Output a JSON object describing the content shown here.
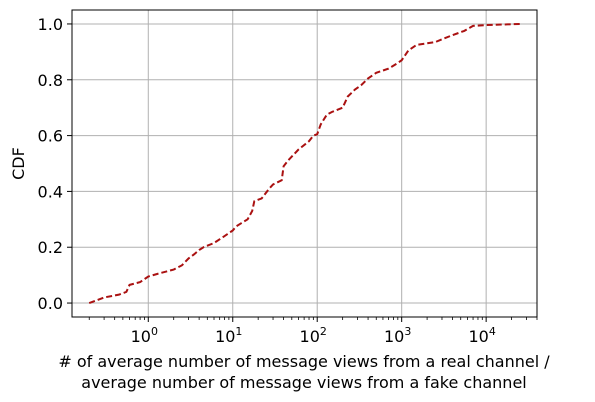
{
  "chart_data": {
    "type": "line",
    "xscale": "log",
    "xlim": [
      0.125,
      40000
    ],
    "ylim": [
      -0.05,
      1.05
    ],
    "grid": true,
    "xlabel_lines": [
      "# of average number of message views from a real channel /",
      "average number of message views from a fake channel"
    ],
    "ylabel": "CDF",
    "x_ticks": [
      {
        "value": 1,
        "base": "10",
        "exp": "0"
      },
      {
        "value": 10,
        "base": "10",
        "exp": "1"
      },
      {
        "value": 100,
        "base": "10",
        "exp": "2"
      },
      {
        "value": 1000,
        "base": "10",
        "exp": "3"
      },
      {
        "value": 10000,
        "base": "10",
        "exp": "4"
      }
    ],
    "y_ticks": [
      "0.0",
      "0.2",
      "0.4",
      "0.6",
      "0.8",
      "1.0"
    ],
    "y_tick_values": [
      0.0,
      0.2,
      0.4,
      0.6,
      0.8,
      1.0
    ],
    "series": [
      {
        "color": "#aa1111",
        "linestyle": "dashed",
        "x": [
          0.2,
          0.3,
          0.45,
          0.55,
          0.6,
          0.8,
          1.0,
          1.3,
          2.0,
          2.5,
          3.0,
          3.5,
          4.0,
          4.5,
          6.0,
          8.0,
          10.0,
          11.0,
          15.0,
          17.0,
          18.0,
          22.0,
          27.0,
          30.0,
          38.0,
          40.0,
          45.0,
          60.0,
          80.0,
          90.0,
          100.0,
          110.0,
          130.0,
          150.0,
          200.0,
          230.0,
          280.0,
          330.0,
          400.0,
          500.0,
          700.0,
          900.0,
          1000.0,
          1200.0,
          1500.0,
          2500.0,
          3000.0,
          4000.0,
          5500.0,
          7000.0,
          10000.0,
          25000.0
        ],
        "y": [
          0.0,
          0.02,
          0.03,
          0.04,
          0.065,
          0.075,
          0.095,
          0.105,
          0.12,
          0.135,
          0.16,
          0.175,
          0.19,
          0.2,
          0.215,
          0.24,
          0.26,
          0.275,
          0.3,
          0.33,
          0.365,
          0.375,
          0.41,
          0.425,
          0.44,
          0.49,
          0.51,
          0.55,
          0.58,
          0.6,
          0.605,
          0.64,
          0.675,
          0.685,
          0.7,
          0.74,
          0.765,
          0.78,
          0.805,
          0.825,
          0.84,
          0.86,
          0.87,
          0.905,
          0.925,
          0.935,
          0.945,
          0.96,
          0.975,
          0.993,
          0.996,
          1.0
        ]
      }
    ]
  }
}
